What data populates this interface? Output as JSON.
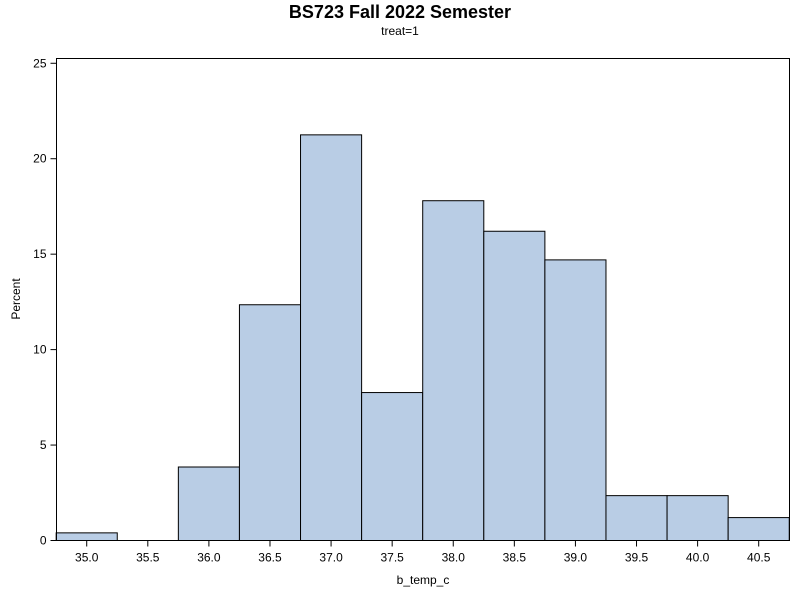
{
  "chart_data": {
    "type": "bar",
    "title": "BS723 Fall 2022 Semester",
    "subtitle": "treat=1",
    "xlabel": "b_temp_c",
    "ylabel": "Percent",
    "bin_width": 0.5,
    "bins": [
      {
        "midpoint": 35.0,
        "value": 0.4
      },
      {
        "midpoint": 35.5,
        "value": 0.0
      },
      {
        "midpoint": 36.0,
        "value": 3.85
      },
      {
        "midpoint": 36.5,
        "value": 12.35
      },
      {
        "midpoint": 37.0,
        "value": 21.25
      },
      {
        "midpoint": 37.5,
        "value": 7.75
      },
      {
        "midpoint": 38.0,
        "value": 17.8
      },
      {
        "midpoint": 38.5,
        "value": 16.2
      },
      {
        "midpoint": 39.0,
        "value": 14.7
      },
      {
        "midpoint": 39.5,
        "value": 2.35
      },
      {
        "midpoint": 40.0,
        "value": 2.35
      },
      {
        "midpoint": 40.5,
        "value": 1.2
      }
    ],
    "x_ticks": [
      "35.0",
      "35.5",
      "36.0",
      "36.5",
      "37.0",
      "37.5",
      "38.0",
      "38.5",
      "39.0",
      "39.5",
      "40.0",
      "40.5"
    ],
    "y_ticks": [
      "0",
      "5",
      "10",
      "15",
      "20",
      "25"
    ],
    "xlim": [
      34.7527,
      40.7521
    ],
    "ylim": [
      0,
      25.25
    ],
    "grid": false,
    "bar_color": "#b9cde5",
    "bar_edge_color": "#000000"
  }
}
